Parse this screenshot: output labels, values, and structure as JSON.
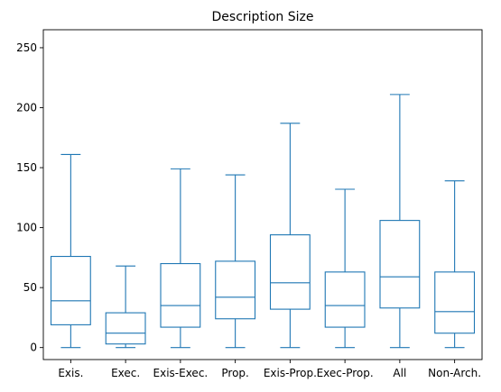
{
  "chart_data": {
    "type": "box",
    "title": "Description Size",
    "xlabel": "",
    "ylabel": "",
    "ylim": [
      -10,
      265
    ],
    "yticks": [
      0,
      50,
      100,
      150,
      200,
      250
    ],
    "color": "#1f77b4",
    "grid": false,
    "categories": [
      "Exis.",
      "Exec.",
      "Exis-Exec.",
      "Prop.",
      "Exis-Prop.",
      "Exec-Prop.",
      "All",
      "Non-Arch."
    ],
    "boxes": [
      {
        "whisker_low": 0,
        "q1": 19,
        "median": 39,
        "q3": 76,
        "whisker_high": 161
      },
      {
        "whisker_low": 0,
        "q1": 3,
        "median": 12,
        "q3": 29,
        "whisker_high": 68
      },
      {
        "whisker_low": 0,
        "q1": 17,
        "median": 35,
        "q3": 70,
        "whisker_high": 149
      },
      {
        "whisker_low": 0,
        "q1": 24,
        "median": 42,
        "q3": 72,
        "whisker_high": 144
      },
      {
        "whisker_low": 0,
        "q1": 32,
        "median": 54,
        "q3": 94,
        "whisker_high": 187
      },
      {
        "whisker_low": 0,
        "q1": 17,
        "median": 35,
        "q3": 63,
        "whisker_high": 132
      },
      {
        "whisker_low": 0,
        "q1": 33,
        "median": 59,
        "q3": 106,
        "whisker_high": 211
      },
      {
        "whisker_low": 0,
        "q1": 12,
        "median": 30,
        "q3": 63,
        "whisker_high": 139
      }
    ]
  }
}
